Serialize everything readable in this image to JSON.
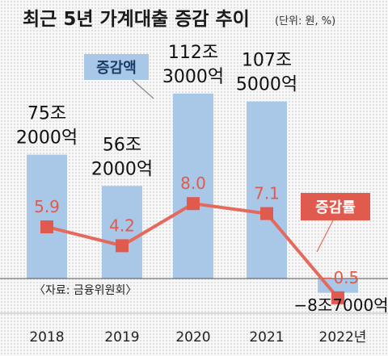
{
  "title": "최근 5년 가계대출 증감 추이",
  "unit_note": "(단위: 원, %)",
  "source": "〈자료: 금융위원회〉",
  "legend": {
    "bar_label": "증감액",
    "line_label": "증감률"
  },
  "colors": {
    "bar": "#a9c8e8",
    "line": "#e46a5e",
    "marker": "#e05a4e",
    "rate_text": "#e05a4e",
    "legend_bar_bg": "#a9c8e8",
    "legend_line_bg": "#e05a4e"
  },
  "chart_data": {
    "type": "bar",
    "categories": [
      "2018",
      "2019",
      "2020",
      "2021",
      "2022년"
    ],
    "series": [
      {
        "name": "증감액",
        "type": "bar",
        "values": [
          752000,
          562000,
          1123000,
          1075000,
          -87000
        ],
        "unit": "억 원",
        "labels": [
          [
            "75조",
            "2000억"
          ],
          [
            "56조",
            "2000억"
          ],
          [
            "112조",
            "3000억"
          ],
          [
            "107조",
            "5000억"
          ],
          [
            "−8조7000억"
          ]
        ]
      },
      {
        "name": "증감률",
        "type": "line",
        "values": [
          5.9,
          4.2,
          8.0,
          7.1,
          -0.5
        ],
        "unit": "%",
        "labels": [
          "5.9",
          "4.2",
          "8.0",
          "7.1",
          "−0.5"
        ]
      }
    ]
  }
}
